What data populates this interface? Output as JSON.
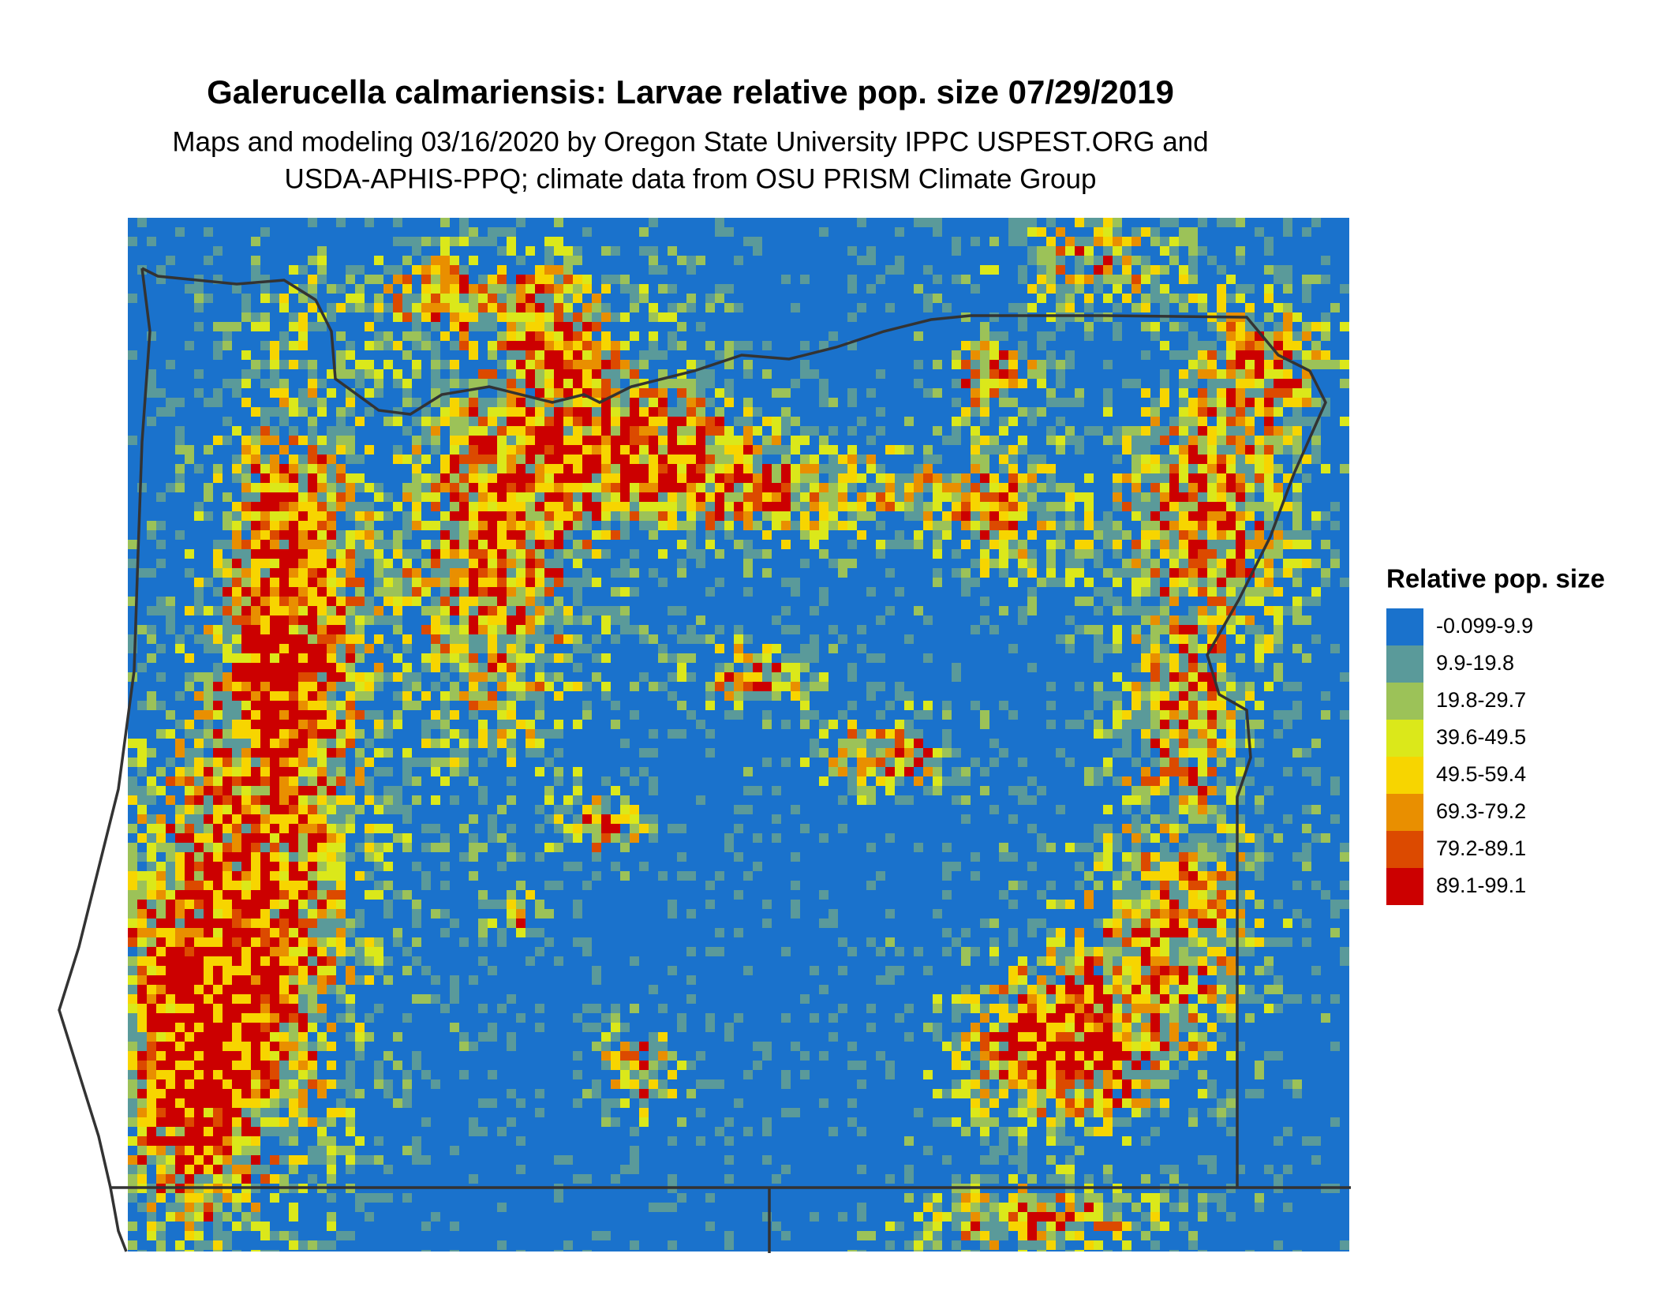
{
  "header": {
    "title": "Galerucella calmariensis: Larvae relative pop. size 07/29/2019",
    "subtitle": [
      "Maps and modeling 03/16/2020 by Oregon State University IPPC USPEST.ORG and",
      "USDA-APHIS-PPQ; climate data from OSU PRISM Climate Group"
    ]
  },
  "legend": {
    "title": "Relative pop. size",
    "items": [
      {
        "label": "-0.099-9.9",
        "color": "#1a72cc"
      },
      {
        "label": "9.9-19.8",
        "color": "#5a9a9a"
      },
      {
        "label": "19.8-29.7",
        "color": "#9cc258"
      },
      {
        "label": "39.6-49.5",
        "color": "#dbe81a"
      },
      {
        "label": "49.5-59.4",
        "color": "#f7d500"
      },
      {
        "label": "69.3-79.2",
        "color": "#e98f00"
      },
      {
        "label": "79.2-89.1",
        "color": "#dc4a00"
      },
      {
        "label": "89.1-99.1",
        "color": "#cc0000"
      }
    ]
  }
}
